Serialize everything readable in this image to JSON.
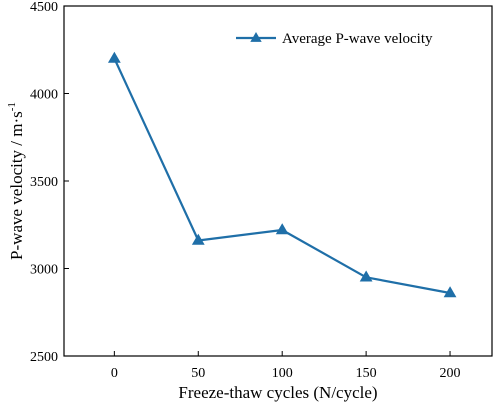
{
  "chart_data": {
    "type": "line",
    "x": [
      0,
      50,
      100,
      150,
      200
    ],
    "series": [
      {
        "name": "Average P-wave velocity",
        "values": [
          4200,
          3160,
          3220,
          2950,
          2860
        ],
        "color": "#1f6fa8",
        "marker": "triangle"
      }
    ],
    "xlabel": "Freeze-thaw cycles (N/cycle)",
    "ylabel": "P-wave velocity  / m·s",
    "ylabel_superscript": "-1",
    "xlim": [
      -30,
      225
    ],
    "ylim": [
      2500,
      4500
    ],
    "xticks": [
      0,
      50,
      100,
      150,
      200
    ],
    "yticks": [
      2500,
      3000,
      3500,
      4000,
      4500
    ],
    "grid": false,
    "legend_position": "top-right"
  }
}
